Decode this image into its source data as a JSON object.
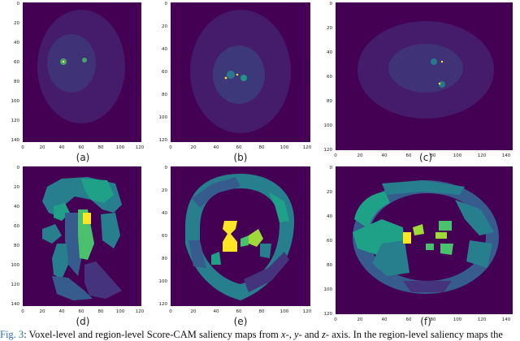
{
  "colors": {
    "background": "#440154",
    "palette": [
      "#440154",
      "#46337e",
      "#365c8d",
      "#277f8e",
      "#1fa187",
      "#4ac16d",
      "#a0da39",
      "#fde725"
    ]
  },
  "panels": [
    {
      "label": "(a)",
      "xticks": [
        "0",
        "20",
        "40",
        "60",
        "80",
        "100",
        "120"
      ],
      "yticks": [
        "0",
        "20",
        "40",
        "60",
        "80",
        "100",
        "120",
        "140"
      ],
      "kind": "voxel"
    },
    {
      "label": "(b)",
      "xticks": [
        "0",
        "20",
        "40",
        "60",
        "80",
        "100",
        "120"
      ],
      "yticks": [
        "0",
        "20",
        "40",
        "60",
        "80",
        "100",
        "120"
      ],
      "kind": "voxel"
    },
    {
      "label": "(c)",
      "xticks": [
        "0",
        "20",
        "40",
        "60",
        "80",
        "100",
        "120",
        "140"
      ],
      "yticks": [
        "0",
        "20",
        "40",
        "60",
        "80",
        "100",
        "120"
      ],
      "kind": "voxel"
    },
    {
      "label": "(d)",
      "xticks": [
        "0",
        "20",
        "40",
        "60",
        "80",
        "100",
        "120"
      ],
      "yticks": [
        "0",
        "20",
        "40",
        "60",
        "80",
        "100",
        "120",
        "140"
      ],
      "kind": "region"
    },
    {
      "label": "(e)",
      "xticks": [
        "0",
        "20",
        "40",
        "60",
        "80",
        "100",
        "120"
      ],
      "yticks": [
        "0",
        "20",
        "40",
        "60",
        "80",
        "100",
        "120"
      ],
      "kind": "region"
    },
    {
      "label": "(f)",
      "xticks": [
        "0",
        "20",
        "40",
        "60",
        "80",
        "100",
        "120",
        "140"
      ],
      "yticks": [
        "0",
        "20",
        "40",
        "60",
        "80",
        "100",
        "120"
      ],
      "kind": "region"
    }
  ],
  "caption": {
    "fig": "Fig. 3",
    "t1": ": Voxel-level and region-level Score-CAM saliency maps from ",
    "x": "x",
    "t2": "-, ",
    "y": "y",
    "t3": "- and ",
    "z": "z",
    "t4": "- axis. In the region-level saliency maps the"
  }
}
